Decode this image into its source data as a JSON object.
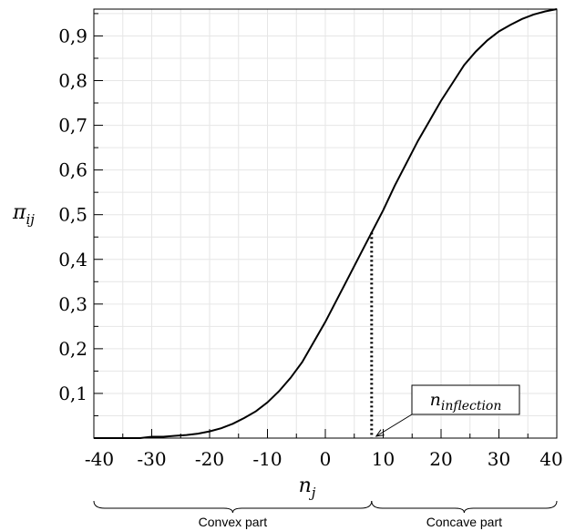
{
  "chart_data": {
    "type": "line",
    "xlim": [
      -40,
      40
    ],
    "ylim": [
      0,
      0.96
    ],
    "grid": true,
    "x_ticks": [
      {
        "value": -40,
        "label": "-40"
      },
      {
        "value": -30,
        "label": "-30"
      },
      {
        "value": -20,
        "label": "-20"
      },
      {
        "value": -10,
        "label": "-10"
      },
      {
        "value": 0,
        "label": "0"
      },
      {
        "value": 10,
        "label": "10"
      },
      {
        "value": 20,
        "label": "20"
      },
      {
        "value": 30,
        "label": "30"
      },
      {
        "value": 40,
        "label": "40"
      }
    ],
    "y_ticks": [
      {
        "value": 0.1,
        "label": "0,1"
      },
      {
        "value": 0.2,
        "label": "0,2"
      },
      {
        "value": 0.3,
        "label": "0,3"
      },
      {
        "value": 0.4,
        "label": "0,4"
      },
      {
        "value": 0.5,
        "label": "0,5"
      },
      {
        "value": 0.6,
        "label": "0,6"
      },
      {
        "value": 0.7,
        "label": "0,7"
      },
      {
        "value": 0.8,
        "label": "0,8"
      },
      {
        "value": 0.9,
        "label": "0,9"
      }
    ],
    "xlabel": {
      "base": "n",
      "sub": "j"
    },
    "ylabel": {
      "base": "π",
      "sub": "ij"
    },
    "series": [
      {
        "points": [
          [
            -40,
            0.0
          ],
          [
            -32,
            0.0
          ],
          [
            -30,
            0.003
          ],
          [
            -28,
            0.003
          ],
          [
            -26,
            0.005
          ],
          [
            -24,
            0.007
          ],
          [
            -22,
            0.01
          ],
          [
            -20,
            0.015
          ],
          [
            -18,
            0.022
          ],
          [
            -16,
            0.032
          ],
          [
            -14,
            0.045
          ],
          [
            -12,
            0.06
          ],
          [
            -10,
            0.08
          ],
          [
            -8,
            0.105
          ],
          [
            -6,
            0.135
          ],
          [
            -4,
            0.17
          ],
          [
            -2,
            0.215
          ],
          [
            0,
            0.26
          ],
          [
            2,
            0.31
          ],
          [
            4,
            0.36
          ],
          [
            6,
            0.41
          ],
          [
            8,
            0.46
          ],
          [
            10,
            0.51
          ],
          [
            12,
            0.565
          ],
          [
            14,
            0.615
          ],
          [
            16,
            0.665
          ],
          [
            18,
            0.71
          ],
          [
            20,
            0.755
          ],
          [
            22,
            0.795
          ],
          [
            24,
            0.835
          ],
          [
            26,
            0.865
          ],
          [
            28,
            0.89
          ],
          [
            30,
            0.91
          ],
          [
            32,
            0.925
          ],
          [
            34,
            0.938
          ],
          [
            36,
            0.948
          ],
          [
            38,
            0.955
          ],
          [
            40,
            0.96
          ]
        ]
      }
    ],
    "inflection": {
      "x": 8,
      "y": 0.46,
      "label": {
        "base": "n",
        "sub": "inflection"
      }
    },
    "brackets": [
      {
        "from": -40,
        "to": 8,
        "label": "Convex part"
      },
      {
        "from": 8,
        "to": 40,
        "label": "Concave part"
      }
    ]
  }
}
